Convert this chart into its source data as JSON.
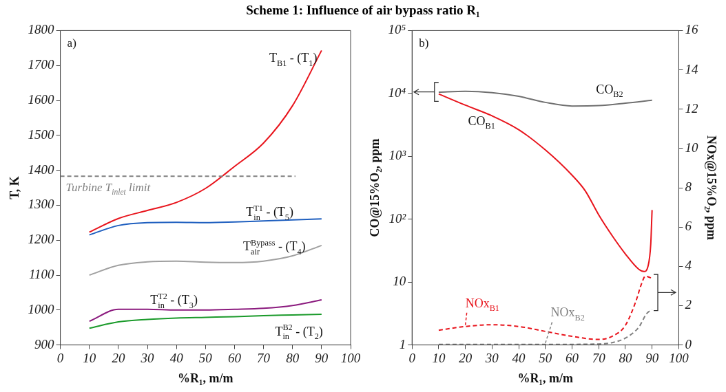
{
  "chart_data": [
    {
      "type": "line",
      "title": "Scheme 1: Influence of air bypass ratio R₁",
      "xlabel": "%R₁, m/m",
      "ylabel": "T, K",
      "x": [
        10,
        20,
        30,
        40,
        50,
        60,
        70,
        80,
        90
      ],
      "xlim": [
        0,
        100
      ],
      "xticks": [
        0,
        10,
        20,
        30,
        40,
        50,
        60,
        70,
        80,
        90,
        100
      ],
      "ylim": [
        900,
        1800
      ],
      "yticks": [
        900,
        1000,
        1100,
        1200,
        1300,
        1400,
        1500,
        1600,
        1700,
        1800
      ],
      "grid": false,
      "legend": false,
      "marker": "none",
      "line_style": "solid",
      "series": [
        {
          "name": "T$_{B1}$ - (T$_{1}$)",
          "color": "#e8141c",
          "values": [
            1223,
            1262,
            1285,
            1308,
            1348,
            1411,
            1478,
            1585,
            1743
          ]
        },
        {
          "name": "T$_{in}$$^{T1}$ - (T$_{5}$)",
          "color": "#1f5fbf",
          "values": [
            1215,
            1242,
            1250,
            1251,
            1250,
            1252,
            1255,
            1258,
            1261
          ]
        },
        {
          "name": "T$_{air}$$^{Bypass}$ - (T$_{4}$)",
          "color": "#a0a0a0",
          "values": [
            1100,
            1128,
            1138,
            1140,
            1137,
            1136,
            1140,
            1155,
            1185
          ]
        },
        {
          "name": "T$_{in}$$^{T2}$ - (T$_{3}$)",
          "color": "#8b1a7e",
          "values": [
            968,
            1002,
            1002,
            1000,
            1000,
            1002,
            1005,
            1013,
            1029
          ]
        },
        {
          "name": "T$_{in}$$^{B2}$ - (T$_{2}$)",
          "color": "#1a9a2a",
          "values": [
            948,
            966,
            973,
            977,
            979,
            981,
            984,
            986,
            988
          ]
        }
      ],
      "ref_lines": [
        {
          "axis": "y",
          "value": 1383,
          "label": "Turbine T$_{inlet}$ limit",
          "color": "#808080",
          "line_style": "dashed"
        }
      ],
      "annotations": [
        "a)"
      ]
    },
    {
      "type": "line",
      "xlabel": "%R₁, m/m",
      "ylabel": "CO@15%O₂, ppm",
      "y2label": "NOx@15%O₂, ppm",
      "log": "y",
      "xlim": [
        0,
        100
      ],
      "xticks": [
        0,
        10,
        20,
        30,
        40,
        50,
        60,
        70,
        80,
        90,
        100
      ],
      "ylim": [
        1,
        100000
      ],
      "yticks": [
        1,
        10,
        {
          "value": 100,
          "label": "10²"
        },
        {
          "value": 1000,
          "label": "10³"
        },
        {
          "value": 10000,
          "label": "10⁴"
        },
        {
          "value": 100000,
          "label": "10⁵"
        }
      ],
      "y2lim": [
        0,
        16
      ],
      "y2ticks": [
        0,
        2,
        4,
        6,
        8,
        10,
        12,
        14,
        16
      ],
      "grid": false,
      "legend": false,
      "marker": "none",
      "line_style": "solid",
      "series": [
        {
          "name": "CO$_{B1}$",
          "color": "#e8141c",
          "x": [
            10,
            20,
            30,
            40,
            50,
            60,
            65,
            70,
            75,
            80,
            85,
            87,
            88.5,
            89.5,
            90
          ],
          "values": [
            9800,
            6500,
            4400,
            2650,
            1260,
            500,
            280,
            117,
            55,
            28,
            16,
            14.7,
            18,
            40,
            140
          ]
        },
        {
          "name": "CO$_{B2}$",
          "color": "#707070",
          "x": [
            10,
            20,
            30,
            40,
            50,
            60,
            70,
            80,
            90
          ],
          "values": [
            10500,
            10800,
            10300,
            9000,
            7200,
            6300,
            6400,
            7000,
            7800
          ]
        },
        {
          "name": "NOx$_{B1}$",
          "color": "#e8141c",
          "axis": "y2",
          "line_style": "dashed",
          "x": [
            10,
            20,
            30,
            40,
            50,
            60,
            70,
            75,
            80,
            84,
            86,
            87.5,
            89,
            90
          ],
          "values": [
            0.75,
            0.94,
            1.03,
            0.94,
            0.69,
            0.44,
            0.28,
            0.44,
            1.0,
            2.25,
            3.1,
            3.5,
            3.44,
            3.38
          ]
        },
        {
          "name": "NOx$_{B2}$",
          "color": "#808080",
          "axis": "y2",
          "line_style": "dashed",
          "x": [
            10,
            30,
            50,
            70,
            75,
            80,
            85,
            88,
            90
          ],
          "values": [
            0.03,
            0.03,
            0.03,
            0.05,
            0.12,
            0.35,
            0.9,
            1.6,
            1.8
          ]
        }
      ],
      "annotations": [
        "b)"
      ]
    }
  ]
}
